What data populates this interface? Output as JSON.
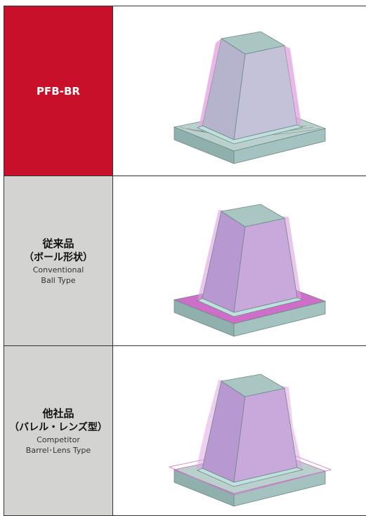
{
  "rows": [
    {
      "label": [
        "PFB-BR"
      ]
    },
    {
      "label": [
        "従来品",
        "（ボール形状）",
        "Conventional",
        "Ball Type"
      ]
    },
    {
      "label": [
        "他社品",
        "（バレル・レンズ型）",
        "Competitor",
        "Barrel･Lens Type"
      ]
    }
  ]
}
